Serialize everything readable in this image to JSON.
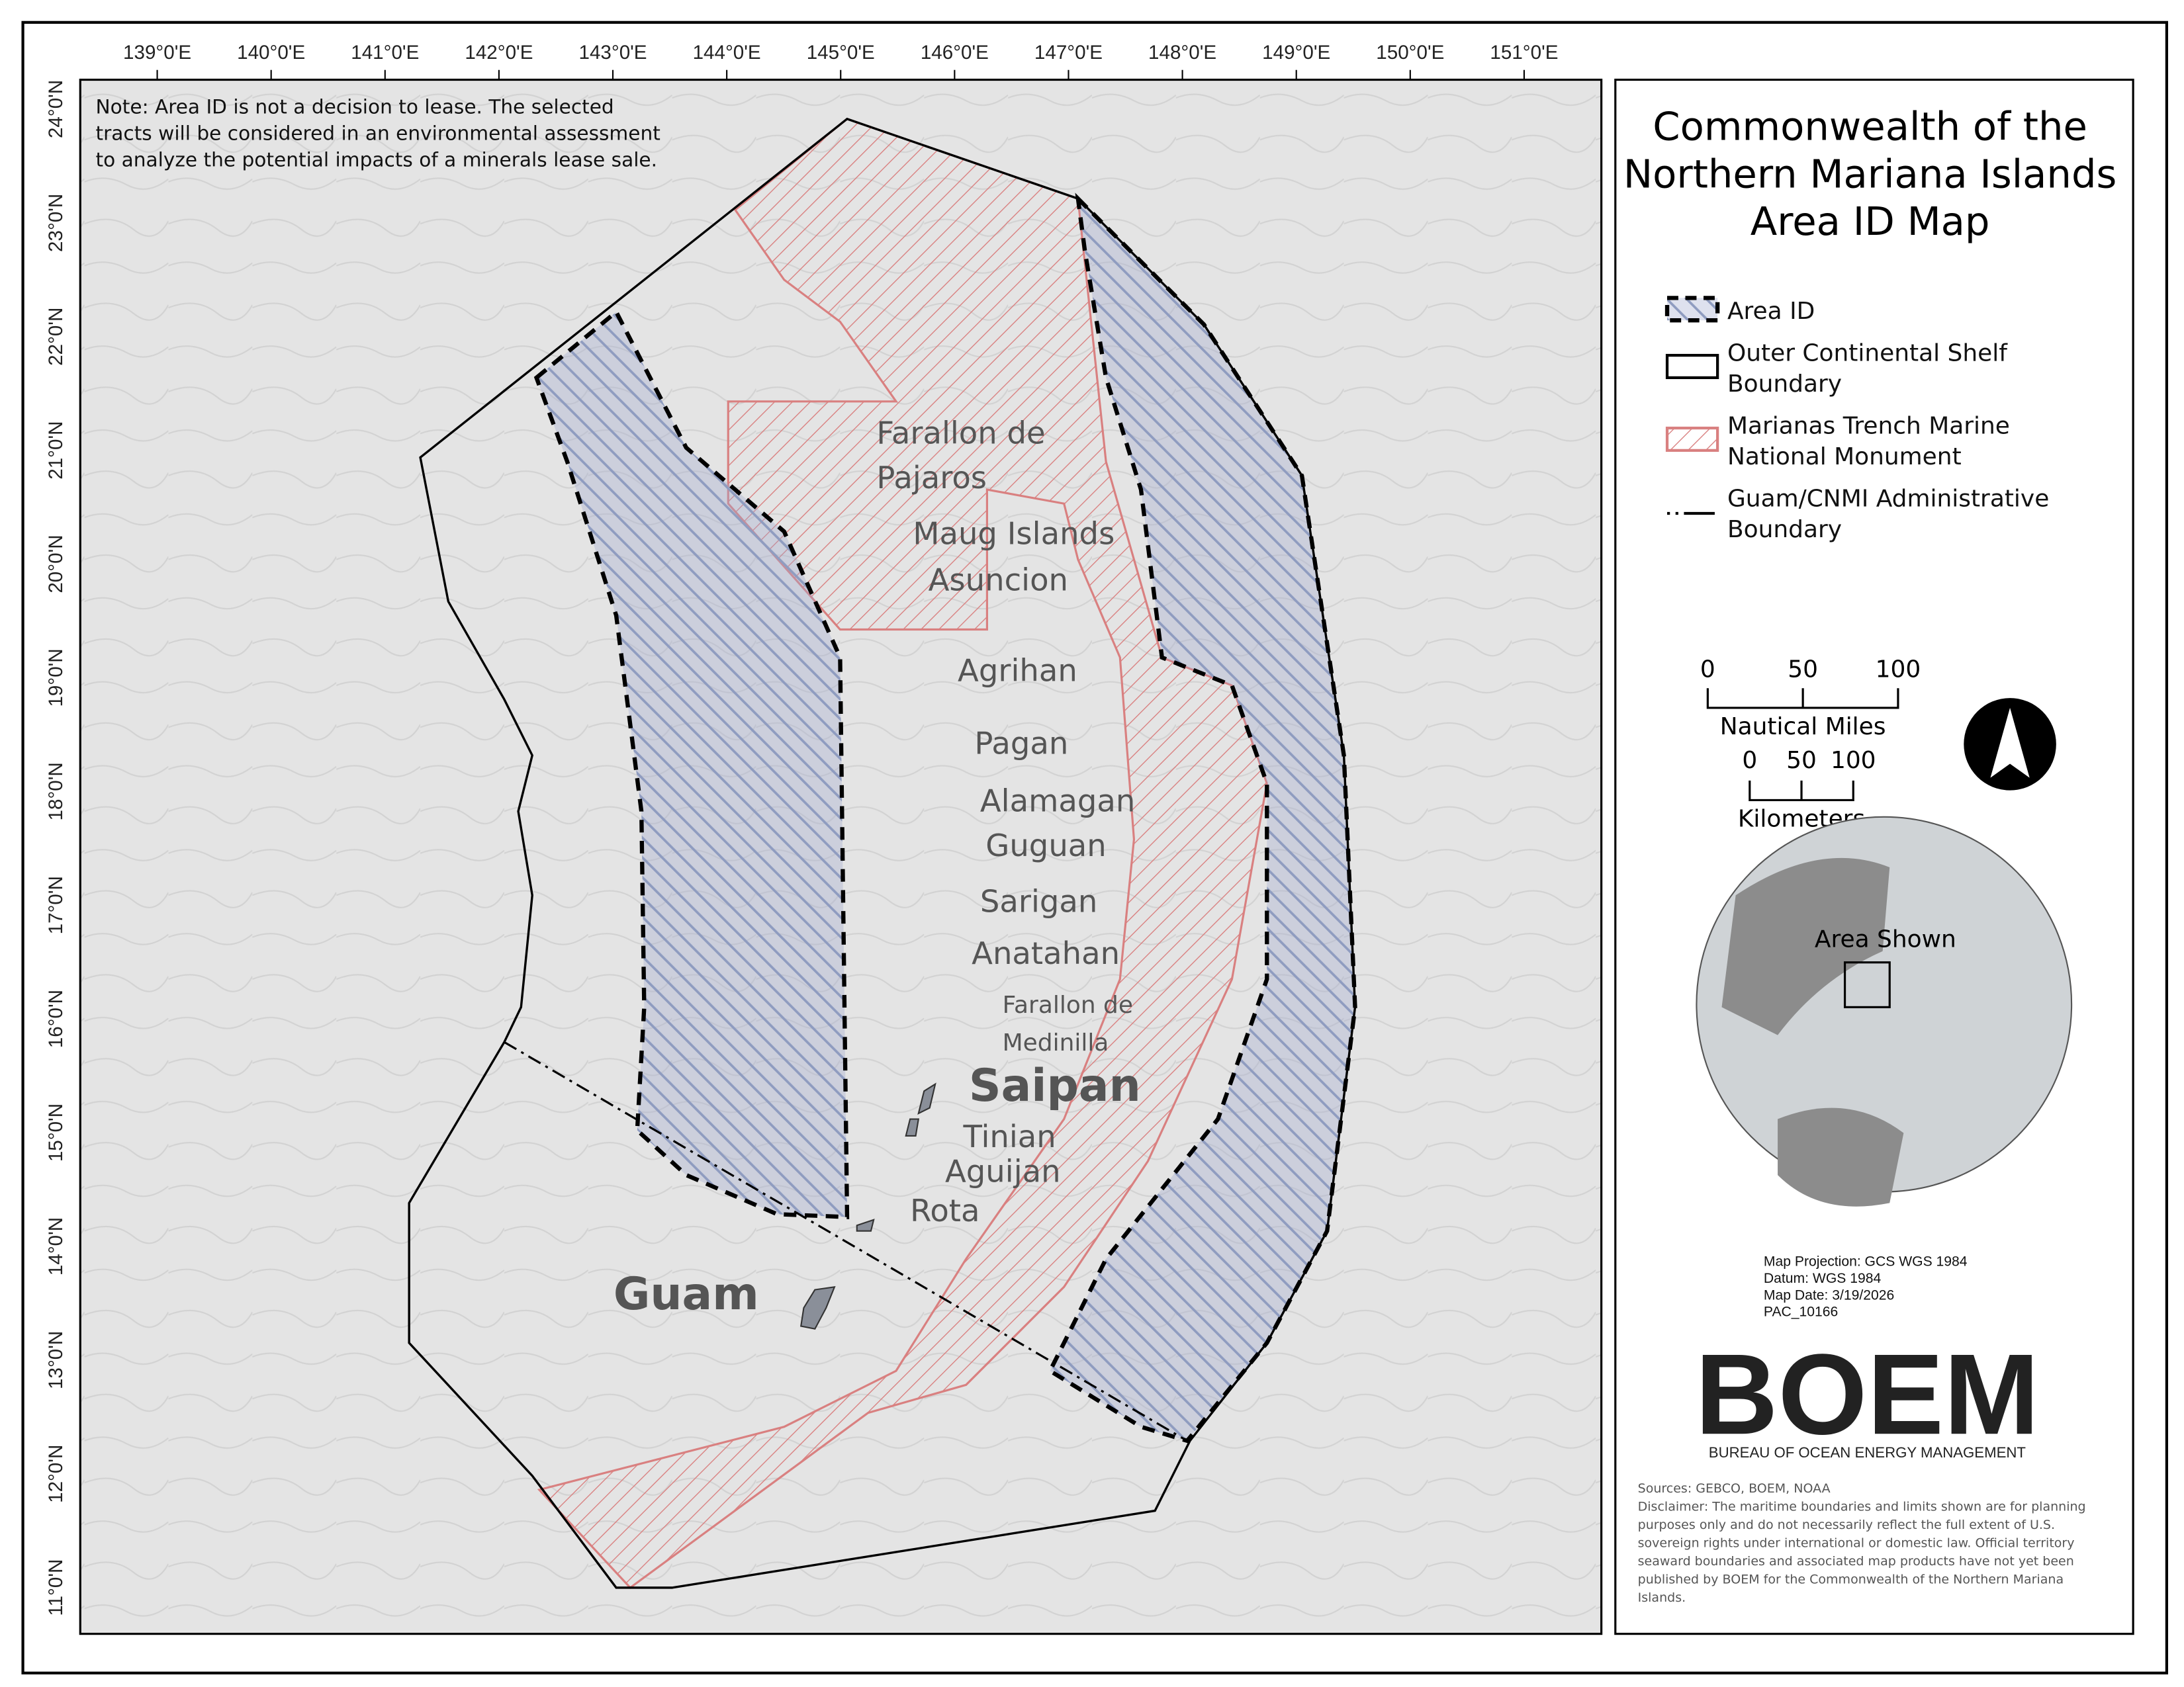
{
  "title_lines": [
    "Commonwealth of the",
    "Northern Mariana Islands",
    "Area ID Map"
  ],
  "note_lines": [
    "Note: Area ID is not a decision to lease. The selected",
    "tracts will be considered in an environmental assessment",
    "to analyze the potential impacts of a minerals lease sale."
  ],
  "longitude_ticks": [
    "139°0'E",
    "140°0'E",
    "141°0'E",
    "142°0'E",
    "143°0'E",
    "144°0'E",
    "145°0'E",
    "146°0'E",
    "147°0'E",
    "148°0'E",
    "149°0'E",
    "150°0'E",
    "151°0'E"
  ],
  "latitude_ticks": [
    "24°0'N",
    "23°0'N",
    "22°0'N",
    "21°0'N",
    "20°0'N",
    "19°0'N",
    "18°0'N",
    "17°0'N",
    "16°0'N",
    "15°0'N",
    "14°0'N",
    "13°0'N",
    "12°0'N",
    "11°0'N"
  ],
  "islands": {
    "farallon_de_pajaros": [
      "Farallon de",
      "Pajaros"
    ],
    "maug": "Maug Islands",
    "asuncion": "Asuncion",
    "agrihan": "Agrihan",
    "pagan": "Pagan",
    "alamagan": "Alamagan",
    "guguan": "Guguan",
    "sarigan": "Sarigan",
    "anatahan": "Anatahan",
    "farallon_de_medinilla": [
      "Farallon de",
      "Medinilla"
    ],
    "saipan": "Saipan",
    "tinian": "Tinian",
    "aguijan": "Aguijan",
    "rota": "Rota",
    "guam": "Guam"
  },
  "legend": {
    "area_id": "Area ID",
    "ocs": [
      "Outer Continental Shelf",
      "Boundary"
    ],
    "monument": [
      "Marianas Trench Marine",
      "National Monument"
    ],
    "admin": [
      "Guam/CNMI Administrative",
      "Boundary"
    ]
  },
  "scale_bar": {
    "nm_ticks": [
      "0",
      "50",
      "100"
    ],
    "nm_label": "Nautical Miles",
    "km_ticks": [
      "0",
      "50",
      "100"
    ],
    "km_label": "Kilometers"
  },
  "inset_label": "Area Shown",
  "map_info": [
    "Map Projection: GCS WGS 1984",
    "Datum: WGS 1984",
    "Map Date: 3/19/2026",
    "PAC_10166"
  ],
  "logo": {
    "wordmark": "BOEM",
    "subtitle": "BUREAU OF OCEAN ENERGY MANAGEMENT"
  },
  "disclaimer_lines": [
    "Sources: GEBCO, BOEM, NOAA",
    "Disclaimer: The maritime boundaries and limits shown are for planning",
    "purposes only and do not necessarily reflect the full extent of U.S.",
    "sovereign rights under international or domestic law. Official territory",
    "seaward boundaries and associated map products have not yet been",
    "published by BOEM for the Commonwealth of the Northern Mariana",
    "Islands."
  ],
  "colors": {
    "area_id_hatch": "#8f9cc0",
    "monument_hatch": "#d98080",
    "background": "#e6e6e6"
  }
}
